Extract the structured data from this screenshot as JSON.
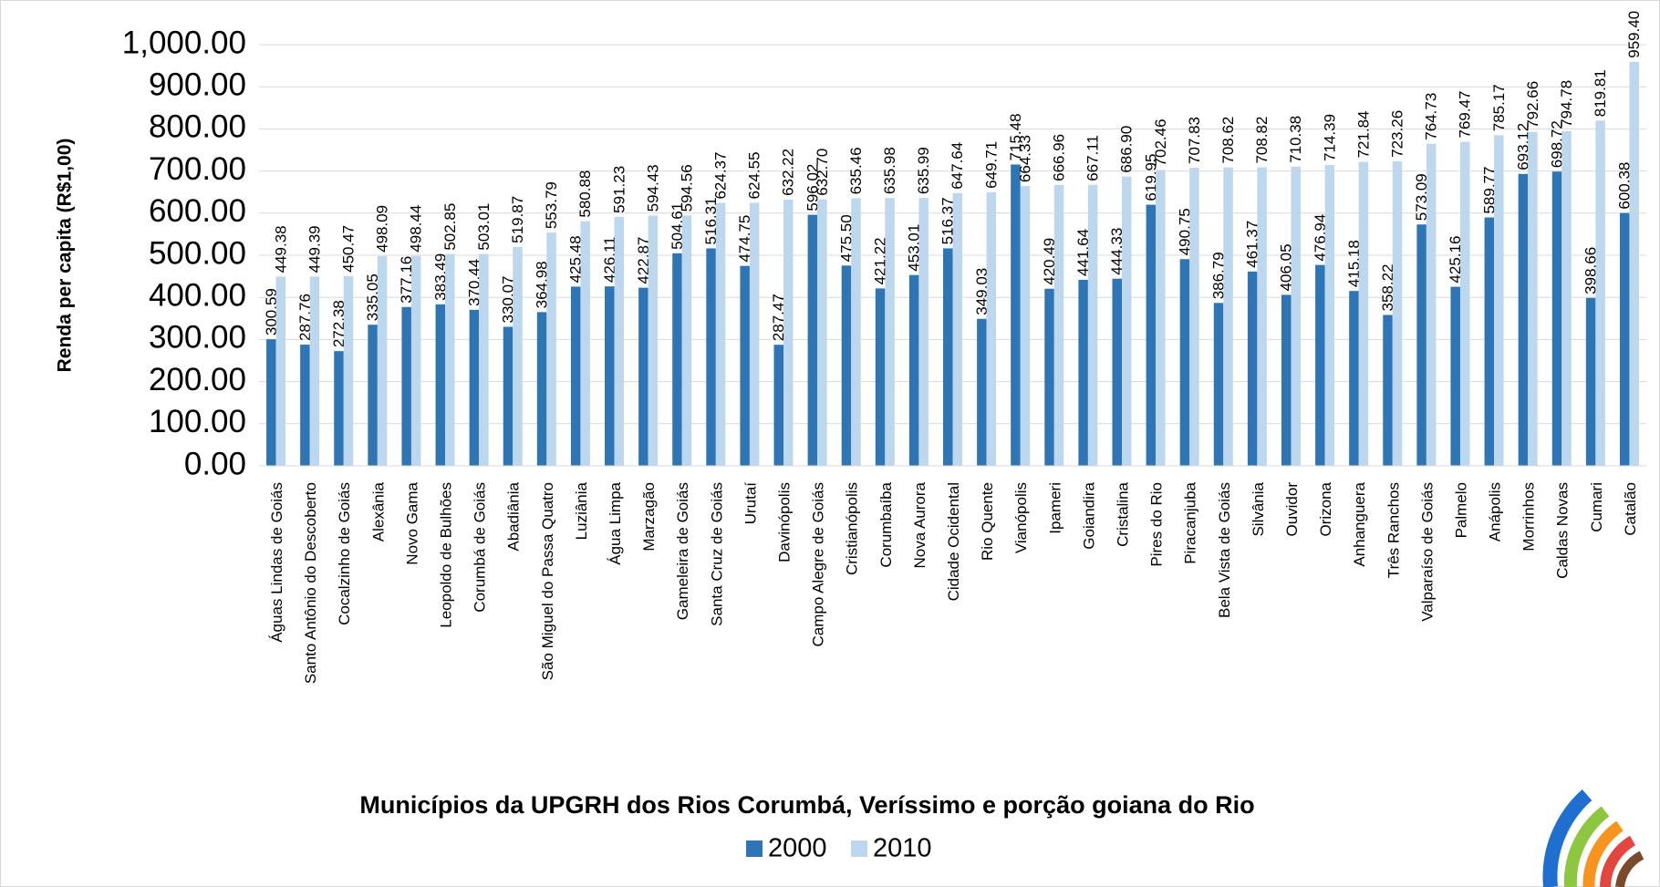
{
  "chart_data": {
    "type": "bar",
    "title": "Municípios da UPGRH dos Rios Corumbá, Veríssimo e porção goiana do Rio",
    "y_label": "Renda per capita (R$1,00)",
    "categories": [
      "Águas Lindas de Goiás",
      "Santo Antônio do Descoberto",
      "Cocalzinho de Goiás",
      "Alexânia",
      "Novo Gama",
      "Leopoldo de Bulhões",
      "Corumbá de Goiás",
      "Abadiânia",
      "São Miguel do Passa Quatro",
      "Luziânia",
      "Água Limpa",
      "Marzagão",
      "Gameleira de Goiás",
      "Santa Cruz de Goiás",
      "Urutaí",
      "Davinópolis",
      "Campo Alegre de Goiás",
      "Cristianópolis",
      "Corumbaíba",
      "Nova Aurora",
      "Cidade Ocidental",
      "Rio Quente",
      "Vianópolis",
      "Ipameri",
      "Goiandira",
      "Cristalina",
      "Pires do Rio",
      "Piracanjuba",
      "Bela Vista de Goiás",
      "Silvânia",
      "Ouvidor",
      "Orizona",
      "Anhanguera",
      "Três Ranchos",
      "Valparaíso de Goiás",
      "Palmelo",
      "Anápolis",
      "Morrinhos",
      "Caldas Novas",
      "Cumari",
      "Catalão"
    ],
    "series": [
      {
        "name": "2000",
        "color": "#2e75b6",
        "values": [
          300.59,
          287.76,
          272.38,
          335.05,
          377.16,
          383.49,
          370.44,
          330.07,
          364.98,
          425.48,
          426.11,
          422.87,
          504.61,
          516.31,
          474.75,
          287.47,
          596.02,
          475.5,
          421.22,
          453.01,
          516.37,
          349.03,
          715.48,
          420.49,
          441.64,
          444.33,
          619.95,
          490.75,
          386.79,
          461.37,
          406.05,
          476.94,
          415.18,
          358.22,
          573.09,
          425.16,
          589.77,
          693.12,
          698.72,
          398.66,
          600.38
        ],
        "value_labels": [
          "300.59",
          "287.76",
          "272.38",
          "335.05",
          "377.16",
          "383.49",
          "370.44",
          "330.07",
          "364.98",
          "425.48",
          "426.11",
          "422.87",
          "504.61",
          "516.31",
          "474.75",
          "287.47",
          "596.02",
          "475.50",
          "421.22",
          "453.01",
          "516.37",
          "349.03",
          "715.48",
          "420.49",
          "441.64",
          "444.33",
          "619.95",
          "490.75",
          "386.79",
          "461.37",
          "406.05",
          "476.94",
          "415.18",
          "358.22",
          "573.09",
          "425.16",
          "589.77",
          "693.12",
          "698.72",
          "398.66",
          "600.38"
        ]
      },
      {
        "name": "2010",
        "color": "#bdd7ee",
        "values": [
          449.38,
          449.39,
          450.47,
          498.09,
          498.44,
          502.85,
          503.01,
          519.87,
          553.79,
          580.88,
          591.23,
          594.43,
          594.56,
          624.37,
          624.55,
          632.22,
          632.7,
          635.46,
          635.98,
          635.99,
          647.64,
          649.71,
          664.33,
          666.96,
          667.11,
          686.9,
          702.46,
          707.83,
          708.62,
          708.82,
          710.38,
          714.39,
          721.84,
          723.26,
          764.73,
          769.47,
          785.17,
          792.66,
          794.78,
          819.81,
          959.4
        ],
        "value_labels": [
          "449.38",
          "449.39",
          "450.47",
          "498.09",
          "498.44",
          "502.85",
          "503.01",
          "519.87",
          "553.79",
          "580.88",
          "591.23",
          "594.43",
          "594.56",
          "624.37",
          "624.55",
          "632.22",
          "632.70",
          "635.46",
          "635.98",
          "635.99",
          "647.64",
          "649.71",
          "664.33",
          "666.96",
          "667.11",
          "686.90",
          "702.46",
          "707.83",
          "708.62",
          "708.82",
          "710.38",
          "714.39",
          "721.84",
          "723.26",
          "764.73",
          "769.47",
          "785.17",
          "792.66",
          "794.78",
          "819.81",
          "959.40"
        ]
      }
    ],
    "ylim": [
      0,
      1000
    ],
    "yticks": [
      {
        "value": 0,
        "label": "0.00"
      },
      {
        "value": 100,
        "label": "100.00"
      },
      {
        "value": 200,
        "label": "200.00"
      },
      {
        "value": 300,
        "label": "300.00"
      },
      {
        "value": 400,
        "label": "400.00"
      },
      {
        "value": 500,
        "label": "500.00"
      },
      {
        "value": 600,
        "label": "600.00"
      },
      {
        "value": 700,
        "label": "700.00"
      },
      {
        "value": 800,
        "label": "800.00"
      },
      {
        "value": 900,
        "label": "900.00"
      },
      {
        "value": 1000,
        "label": "1,000.00"
      }
    ],
    "grid": true,
    "legend": "bottom"
  }
}
